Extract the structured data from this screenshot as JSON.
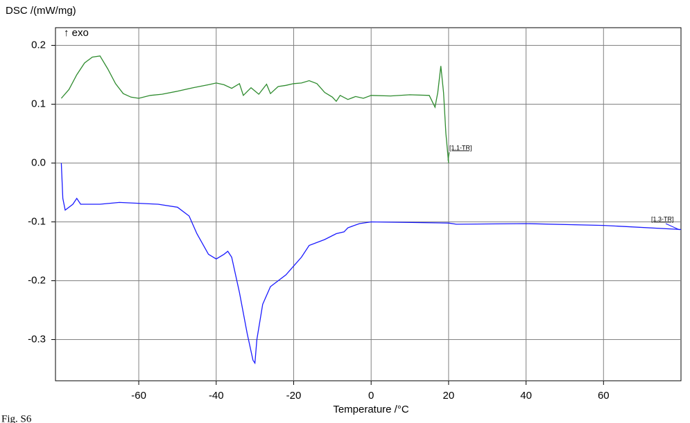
{
  "chart_data": {
    "type": "line",
    "y_label": "DSC /(mW/mg)",
    "direction_label": "↑ exo",
    "x_label": "Temperature /°C",
    "caption": "Fig. S6",
    "annotations": [
      "[1.1-TR]",
      "[1.3-TR]"
    ],
    "xlim": [
      -81.5,
      80
    ],
    "ylim": [
      -0.37,
      0.23
    ],
    "xticks": [
      -60,
      -40,
      -20,
      0,
      20,
      40,
      60
    ],
    "yticks": [
      0.2,
      0.1,
      {
        "value": 0,
        "label": "0.0"
      },
      -0.1,
      -0.2,
      -0.3
    ],
    "grid": true,
    "series": [
      {
        "name": "1.1",
        "color": "#2e8b2e",
        "x": [
          -80,
          -78,
          -76,
          -74,
          -72,
          -70,
          -68,
          -66,
          -64,
          -62,
          -60,
          -57,
          -54,
          -50,
          -46,
          -42,
          -40,
          -38,
          -36,
          -34,
          -33,
          -31,
          -29,
          -27,
          -26,
          -24,
          -22,
          -20,
          -18,
          -16,
          -14,
          -12,
          -10,
          -9,
          -8,
          -6,
          -4,
          -2,
          0,
          5,
          10,
          15,
          16.5,
          17.2,
          18,
          18.7,
          19.3,
          20
        ],
        "values": [
          0.11,
          0.125,
          0.15,
          0.17,
          0.18,
          0.182,
          0.16,
          0.135,
          0.118,
          0.112,
          0.11,
          0.115,
          0.117,
          0.122,
          0.128,
          0.133,
          0.136,
          0.133,
          0.127,
          0.135,
          0.115,
          0.128,
          0.117,
          0.134,
          0.118,
          0.13,
          0.132,
          0.135,
          0.136,
          0.14,
          0.135,
          0.12,
          0.112,
          0.105,
          0.115,
          0.108,
          0.113,
          0.11,
          0.115,
          0.114,
          0.116,
          0.115,
          0.095,
          0.12,
          0.165,
          0.12,
          0.05,
          0.0
        ]
      },
      {
        "name": "1.3",
        "color": "#1a1aff",
        "x": [
          -80,
          -79.6,
          -79,
          -77,
          -76,
          -75,
          -70,
          -65,
          -55,
          -50,
          -47,
          -45,
          -42,
          -40,
          -38,
          -37,
          -36,
          -34,
          -32,
          -30.5,
          -30,
          -29.5,
          -28,
          -26,
          -22,
          -18,
          -16,
          -12,
          -9,
          -7,
          -6,
          -3,
          0,
          20,
          22,
          40,
          60,
          80
        ],
        "values": [
          0.0,
          -0.06,
          -0.08,
          -0.07,
          -0.06,
          -0.07,
          -0.07,
          -0.067,
          -0.07,
          -0.075,
          -0.09,
          -0.12,
          -0.155,
          -0.163,
          -0.155,
          -0.15,
          -0.16,
          -0.22,
          -0.29,
          -0.335,
          -0.34,
          -0.3,
          -0.24,
          -0.21,
          -0.19,
          -0.16,
          -0.14,
          -0.13,
          -0.12,
          -0.117,
          -0.11,
          -0.103,
          -0.1,
          -0.102,
          -0.104,
          -0.103,
          -0.106,
          -0.113
        ]
      }
    ]
  }
}
